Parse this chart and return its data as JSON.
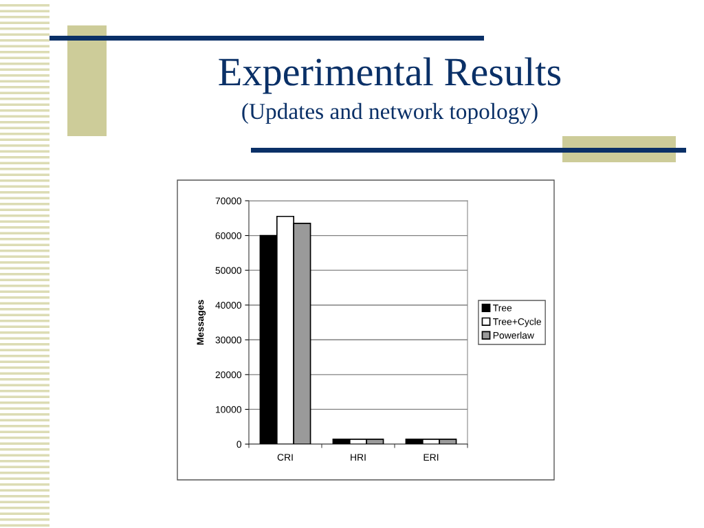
{
  "chart_data": {
    "type": "bar",
    "title": "Experimental Results",
    "subtitle": "(Updates and network topology)",
    "ylabel": "Messages",
    "categories": [
      "CRI",
      "HRI",
      "ERI"
    ],
    "series": [
      {
        "name": "Tree",
        "color": "#000000",
        "values": [
          60000,
          1400,
          1400
        ]
      },
      {
        "name": "Tree+Cycle",
        "color": "#ffffff",
        "values": [
          65500,
          1400,
          1400
        ]
      },
      {
        "name": "Powerlaw",
        "color": "#9a9a9a",
        "values": [
          63500,
          1400,
          1400
        ]
      }
    ],
    "ylim": [
      0,
      70000
    ],
    "yticks": [
      0,
      10000,
      20000,
      30000,
      40000,
      50000,
      60000,
      70000
    ],
    "grid": "y",
    "legend": "right"
  }
}
